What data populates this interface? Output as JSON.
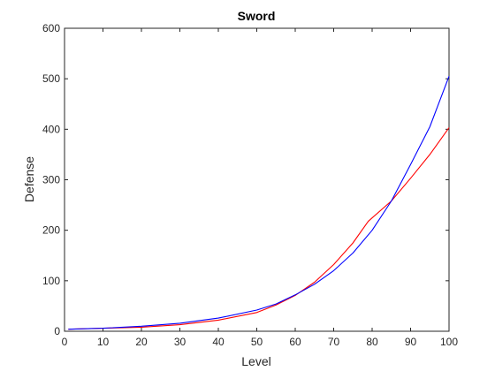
{
  "chart_data": {
    "type": "line",
    "title": "Sword",
    "xlabel": "Level",
    "ylabel": "Defense",
    "xlim": [
      0,
      100
    ],
    "ylim": [
      0,
      600
    ],
    "xticks": [
      0,
      10,
      20,
      30,
      40,
      50,
      60,
      70,
      80,
      90,
      100
    ],
    "yticks": [
      0,
      100,
      200,
      300,
      400,
      500,
      600
    ],
    "grid": false,
    "legend": "none",
    "series": [
      {
        "color": "#ff0000",
        "x": [
          1,
          10,
          20,
          30,
          40,
          50,
          55,
          60,
          65,
          70,
          75,
          79,
          85,
          90,
          95,
          100
        ],
        "y": [
          4,
          6,
          8,
          13,
          22,
          37,
          52,
          71,
          97,
          132,
          175,
          218,
          258,
          303,
          350,
          403
        ]
      },
      {
        "color": "#0000ff",
        "x": [
          1,
          10,
          20,
          30,
          40,
          50,
          55,
          60,
          65,
          70,
          75,
          80,
          85,
          90,
          95,
          100
        ],
        "y": [
          4,
          6,
          10,
          16,
          26,
          42,
          54,
          72,
          93,
          120,
          155,
          200,
          258,
          330,
          405,
          505
        ]
      }
    ]
  }
}
